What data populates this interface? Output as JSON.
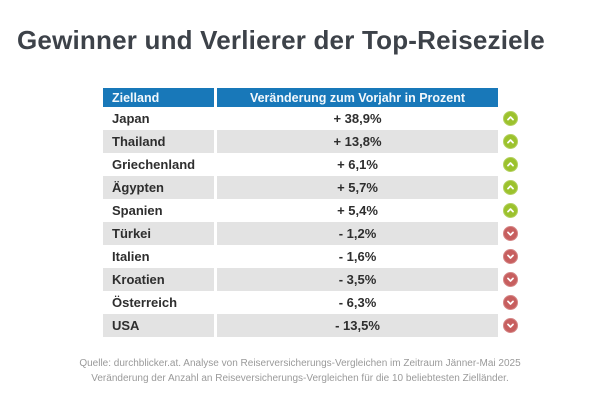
{
  "title": "Gewinner und Verlierer der Top-Reiseziele",
  "table": {
    "headers": [
      "Zielland",
      "Veränderung zum Vorjahr in Prozent"
    ],
    "rows": [
      {
        "country": "Japan",
        "value": "+ 38,9%",
        "trend": "up"
      },
      {
        "country": "Thailand",
        "value": "+ 13,8%",
        "trend": "up"
      },
      {
        "country": "Griechenland",
        "value": "+ 6,1%",
        "trend": "up"
      },
      {
        "country": "Ägypten",
        "value": "+ 5,7%",
        "trend": "up"
      },
      {
        "country": "Spanien",
        "value": "+ 5,4%",
        "trend": "up"
      },
      {
        "country": "Türkei",
        "value": "- 1,2%",
        "trend": "down"
      },
      {
        "country": "Italien",
        "value": "- 1,6%",
        "trend": "down"
      },
      {
        "country": "Kroatien",
        "value": "- 3,5%",
        "trend": "down"
      },
      {
        "country": "Österreich",
        "value": "- 6,3%",
        "trend": "down"
      },
      {
        "country": "USA",
        "value": "- 13,5%",
        "trend": "down"
      }
    ]
  },
  "footer": {
    "line1": "Quelle: durchblicker.at. Analyse von Reiserversicherungs-Vergleichen im Zeitraum Jänner-Mai 2025",
    "line2": "Veränderung der Anzahl an Reiseversicherungs-Vergleichen für die 10 beliebtesten Zielländer."
  },
  "colors": {
    "header_bg": "#1878b9",
    "alt_row_bg": "#e3e3e3",
    "up_badge": "#9cc22d",
    "down_badge": "#c75f5f",
    "title_color": "#3d4249",
    "footer_color": "#9a9a9a"
  },
  "icons": {
    "up": "chevron-up-icon",
    "down": "chevron-down-icon"
  },
  "chart_data": {
    "type": "table",
    "title": "Gewinner und Verlierer der Top-Reiseziele",
    "columns": [
      "Zielland",
      "Veränderung zum Vorjahr in Prozent"
    ],
    "categories": [
      "Japan",
      "Thailand",
      "Griechenland",
      "Ägypten",
      "Spanien",
      "Türkei",
      "Italien",
      "Kroatien",
      "Österreich",
      "USA"
    ],
    "values": [
      38.9,
      13.8,
      6.1,
      5.7,
      5.4,
      -1.2,
      -1.6,
      -3.5,
      -6.3,
      -13.5
    ],
    "unit": "%",
    "value_labels": [
      "+ 38,9%",
      "+ 13,8%",
      "+ 6,1%",
      "+ 5,7%",
      "+ 5,4%",
      "- 1,2%",
      "- 1,6%",
      "- 3,5%",
      "- 6,3%",
      "- 13,5%"
    ],
    "trend_markers": [
      "up",
      "up",
      "up",
      "up",
      "up",
      "down",
      "down",
      "down",
      "down",
      "down"
    ],
    "source_note": "Quelle: durchblicker.at. Analyse von Reiserversicherungs-Vergleichen im Zeitraum Jänner-Mai 2025 Veränderung der Anzahl an Reiseversicherungs-Vergleichen für die 10 beliebtesten Zielländer."
  }
}
